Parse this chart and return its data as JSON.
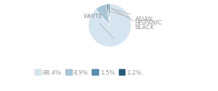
{
  "labels": [
    "WHITE",
    "HISPANIC",
    "ASIAN",
    "BLACK"
  ],
  "values": [
    88.4,
    8.9,
    1.5,
    1.2
  ],
  "colors": [
    "#d5e5f0",
    "#a9c5d8",
    "#5a8dab",
    "#2a5d78"
  ],
  "legend_labels": [
    "88.4%",
    "8.9%",
    "1.5%",
    "1.2%"
  ],
  "startangle": 90,
  "figsize": [
    2.4,
    1.0
  ],
  "dpi": 100,
  "text_color": "#999999",
  "line_color": "#bbbbbb",
  "font_size": 4.8
}
